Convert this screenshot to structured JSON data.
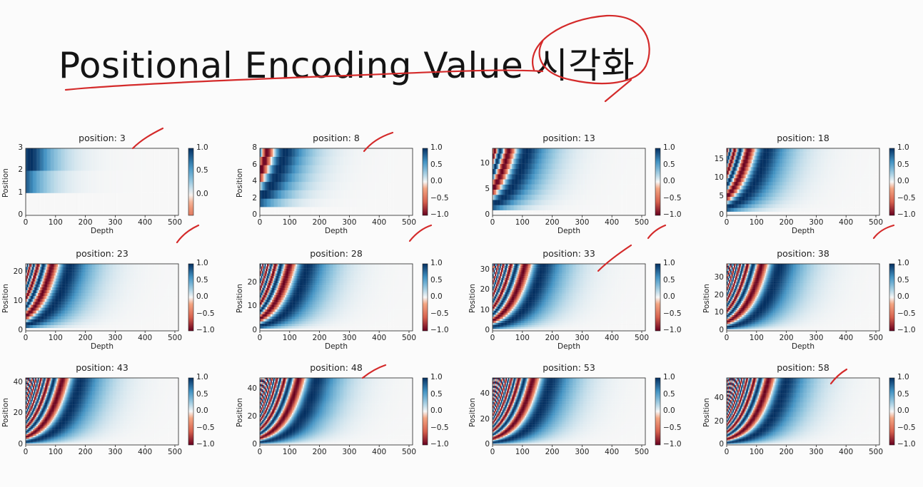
{
  "slide": {
    "title": "Positional Encoding Value 시각화"
  },
  "chart_data": [
    {
      "type": "heatmap",
      "title": "position: 3",
      "xlabel": "Depth",
      "ylabel": "Position",
      "xlim": [
        0,
        512
      ],
      "ylim": [
        0,
        3
      ],
      "xticks": [
        "0",
        "100",
        "200",
        "300",
        "400",
        "500"
      ],
      "yticks": [
        "0",
        "1",
        "2",
        "3"
      ],
      "colorbar": {
        "range": [
          -0.45,
          1.0
        ],
        "ticks": [
          "1.0",
          "0.5",
          "0.0"
        ]
      },
      "colormap": "RdBu",
      "grid": false
    },
    {
      "type": "heatmap",
      "title": "position: 8",
      "xlabel": "Depth",
      "ylabel": "Position",
      "xlim": [
        0,
        512
      ],
      "ylim": [
        0,
        8
      ],
      "xticks": [
        "0",
        "100",
        "200",
        "300",
        "400",
        "500"
      ],
      "yticks": [
        "0",
        "2",
        "4",
        "6",
        "8"
      ],
      "colorbar": {
        "range": [
          -1.0,
          1.0
        ],
        "ticks": [
          "1.0",
          "0.5",
          "0.0",
          "−0.5",
          "−1.0"
        ]
      },
      "colormap": "RdBu",
      "grid": false
    },
    {
      "type": "heatmap",
      "title": "position: 13",
      "xlabel": "Depth",
      "ylabel": "",
      "xlim": [
        0,
        512
      ],
      "ylim": [
        0,
        13
      ],
      "xticks": [
        "0",
        "100",
        "200",
        "300",
        "400",
        "500"
      ],
      "yticks": [
        "0",
        "5",
        "10"
      ],
      "colorbar": {
        "range": [
          -1.0,
          1.0
        ],
        "ticks": [
          "1.0",
          "0.5",
          "0.0",
          "−0.5",
          "−1.0"
        ]
      },
      "colormap": "RdBu",
      "grid": false
    },
    {
      "type": "heatmap",
      "title": "position: 18",
      "xlabel": "Depth",
      "ylabel": "",
      "xlim": [
        0,
        512
      ],
      "ylim": [
        0,
        18
      ],
      "xticks": [
        "0",
        "100",
        "200",
        "300",
        "400",
        "500"
      ],
      "yticks": [
        "0",
        "5",
        "10",
        "15"
      ],
      "colorbar": {
        "range": [
          -1.0,
          1.0
        ],
        "ticks": [
          "1.0",
          "0.5",
          "0.0",
          "−0.5",
          "−1.0"
        ]
      },
      "colormap": "RdBu",
      "grid": false
    },
    {
      "type": "heatmap",
      "title": "position: 23",
      "xlabel": "Depth",
      "ylabel": "Position",
      "xlim": [
        0,
        512
      ],
      "ylim": [
        0,
        23
      ],
      "xticks": [
        "0",
        "100",
        "200",
        "300",
        "400",
        "500"
      ],
      "yticks": [
        "0",
        "10",
        "20"
      ],
      "colorbar": {
        "range": [
          -1.0,
          1.0
        ],
        "ticks": [
          "1.0",
          "0.5",
          "0.0",
          "−0.5",
          "−1.0"
        ]
      },
      "colormap": "RdBu",
      "grid": false
    },
    {
      "type": "heatmap",
      "title": "position: 28",
      "xlabel": "Depth",
      "ylabel": "Position",
      "xlim": [
        0,
        512
      ],
      "ylim": [
        0,
        28
      ],
      "xticks": [
        "0",
        "100",
        "200",
        "300",
        "400",
        "500"
      ],
      "yticks": [
        "0",
        "10",
        "20"
      ],
      "colorbar": {
        "range": [
          -1.0,
          1.0
        ],
        "ticks": [
          "1.0",
          "0.5",
          "0.0",
          "−0.5",
          "−1.0"
        ]
      },
      "colormap": "RdBu",
      "grid": false
    },
    {
      "type": "heatmap",
      "title": "position: 33",
      "xlabel": "Depth",
      "ylabel": "Position",
      "xlim": [
        0,
        512
      ],
      "ylim": [
        0,
        33
      ],
      "xticks": [
        "0",
        "100",
        "200",
        "300",
        "400",
        "500"
      ],
      "yticks": [
        "0",
        "10",
        "20",
        "30"
      ],
      "colorbar": {
        "range": [
          -1.0,
          1.0
        ],
        "ticks": [
          "1.0",
          "0.5",
          "0.0",
          "−0.5",
          "−1.0"
        ]
      },
      "colormap": "RdBu",
      "grid": false
    },
    {
      "type": "heatmap",
      "title": "position: 38",
      "xlabel": "Depth",
      "ylabel": "Position",
      "xlim": [
        0,
        512
      ],
      "ylim": [
        0,
        38
      ],
      "xticks": [
        "0",
        "100",
        "200",
        "300",
        "400",
        "500"
      ],
      "yticks": [
        "0",
        "10",
        "20",
        "30"
      ],
      "colorbar": {
        "range": [
          -1.0,
          1.0
        ],
        "ticks": [
          "1.0",
          "0.5",
          "0.0",
          "−0.5",
          "−1.0"
        ]
      },
      "colormap": "RdBu",
      "grid": false
    },
    {
      "type": "heatmap",
      "title": "position: 43",
      "xlabel": "",
      "ylabel": "Position",
      "xlim": [
        0,
        512
      ],
      "ylim": [
        0,
        43
      ],
      "xticks": [
        "0",
        "100",
        "200",
        "300",
        "400",
        "500"
      ],
      "yticks": [
        "0",
        "20",
        "40"
      ],
      "colorbar": {
        "range": [
          -1.0,
          1.0
        ],
        "ticks": [
          "1.0",
          "0.5",
          "0.0",
          "−0.5",
          "−1.0"
        ]
      },
      "colormap": "RdBu",
      "grid": false
    },
    {
      "type": "heatmap",
      "title": "position: 48",
      "xlabel": "",
      "ylabel": "Position",
      "xlim": [
        0,
        512
      ],
      "ylim": [
        0,
        48
      ],
      "xticks": [
        "0",
        "100",
        "200",
        "300",
        "400",
        "500"
      ],
      "yticks": [
        "0",
        "20",
        "40"
      ],
      "colorbar": {
        "range": [
          -1.0,
          1.0
        ],
        "ticks": [
          "1.0",
          "0.5",
          "0.0",
          "−0.5",
          "−1.0"
        ]
      },
      "colormap": "RdBu",
      "grid": false
    },
    {
      "type": "heatmap",
      "title": "position: 53",
      "xlabel": "",
      "ylabel": "Position",
      "xlim": [
        0,
        512
      ],
      "ylim": [
        0,
        53
      ],
      "xticks": [
        "0",
        "100",
        "200",
        "300",
        "400",
        "500"
      ],
      "yticks": [
        "0",
        "20",
        "40"
      ],
      "colorbar": {
        "range": [
          -1.0,
          1.0
        ],
        "ticks": [
          "1.0",
          "0.5",
          "0.0",
          "−0.5",
          "−1.0"
        ]
      },
      "colormap": "RdBu",
      "grid": false
    },
    {
      "type": "heatmap",
      "title": "position: 58",
      "xlabel": "",
      "ylabel": "Position",
      "xlim": [
        0,
        512
      ],
      "ylim": [
        0,
        58
      ],
      "xticks": [
        "0",
        "100",
        "200",
        "300",
        "400",
        "500"
      ],
      "yticks": [
        "0",
        "20",
        "40"
      ],
      "colorbar": {
        "range": [
          -1.0,
          1.0
        ],
        "ticks": [
          "1.0",
          "0.5",
          "0.0",
          "−0.5",
          "−1.0"
        ]
      },
      "colormap": "RdBu",
      "grid": false
    }
  ],
  "colors": {
    "annotation": "#d42a2a",
    "cmap_low": "#67001f",
    "cmap_mid": "#f7f7f7",
    "cmap_high": "#053061"
  }
}
